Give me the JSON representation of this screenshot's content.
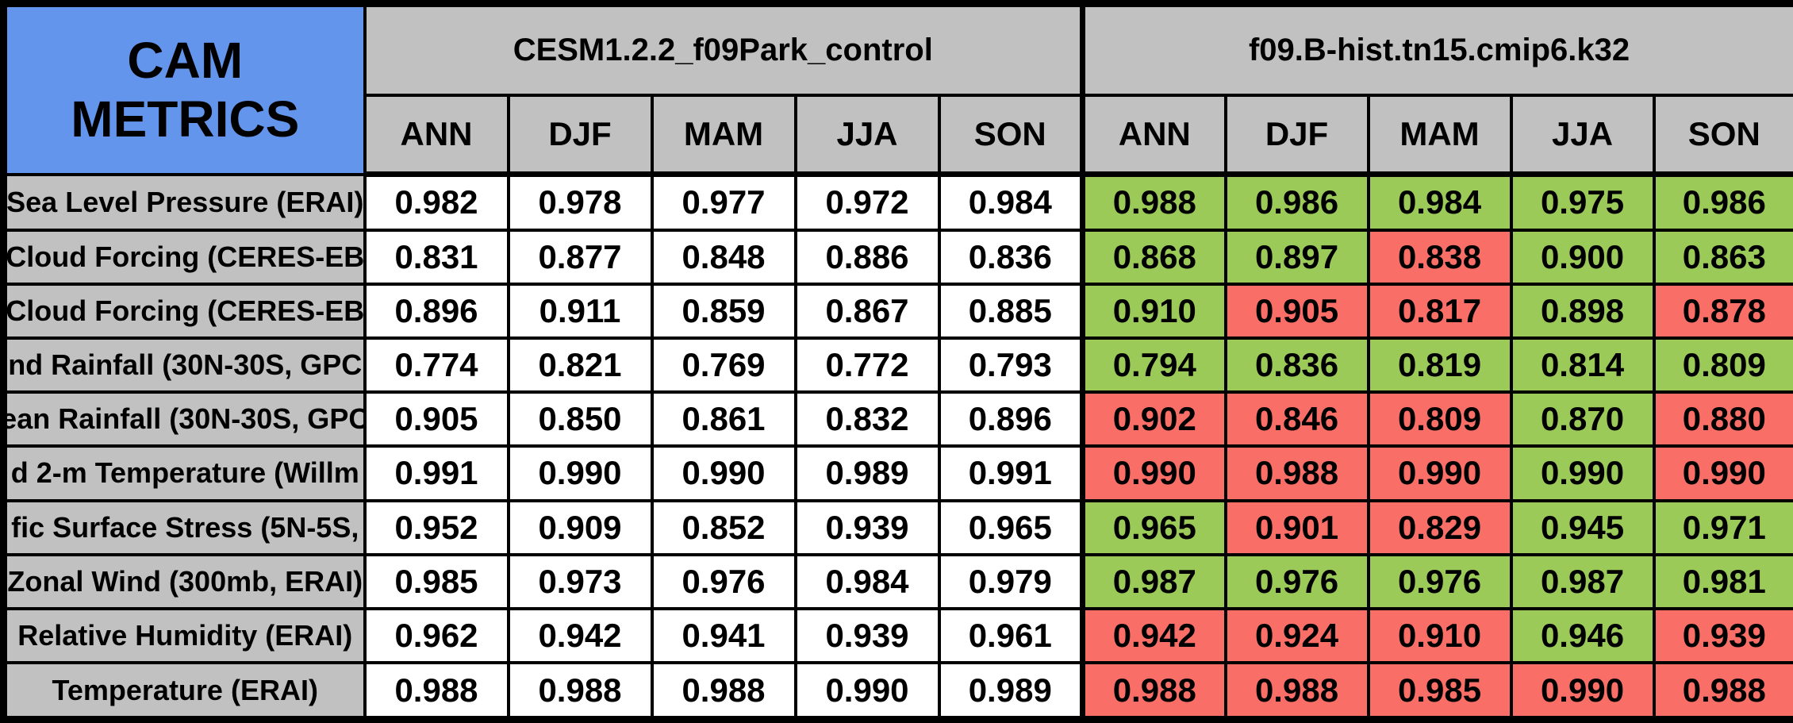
{
  "chart_data": {
    "type": "table",
    "title": "CAM METRICS",
    "column_groups": [
      {
        "title": "CESM1.2.2_f09Park_control"
      },
      {
        "title": "f09.B-hist.tn15.cmip6.k32"
      }
    ],
    "seasons": [
      "ANN",
      "DJF",
      "MAM",
      "JJA",
      "SON"
    ],
    "rows": [
      {
        "label": "Sea Level Pressure (ERAI)",
        "control": [
          "0.982",
          "0.978",
          "0.977",
          "0.972",
          "0.984"
        ],
        "experiment": [
          "0.988",
          "0.986",
          "0.984",
          "0.975",
          "0.986"
        ],
        "experiment_colors": [
          "green",
          "green",
          "green",
          "green",
          "green"
        ]
      },
      {
        "label": "Cloud Forcing (CERES-EB",
        "control": [
          "0.831",
          "0.877",
          "0.848",
          "0.886",
          "0.836"
        ],
        "experiment": [
          "0.868",
          "0.897",
          "0.838",
          "0.900",
          "0.863"
        ],
        "experiment_colors": [
          "green",
          "green",
          "red",
          "green",
          "green"
        ]
      },
      {
        "label": "Cloud Forcing (CERES-EB",
        "control": [
          "0.896",
          "0.911",
          "0.859",
          "0.867",
          "0.885"
        ],
        "experiment": [
          "0.910",
          "0.905",
          "0.817",
          "0.898",
          "0.878"
        ],
        "experiment_colors": [
          "green",
          "red",
          "red",
          "green",
          "red"
        ]
      },
      {
        "label": "nd Rainfall (30N-30S, GPC",
        "control": [
          "0.774",
          "0.821",
          "0.769",
          "0.772",
          "0.793"
        ],
        "experiment": [
          "0.794",
          "0.836",
          "0.819",
          "0.814",
          "0.809"
        ],
        "experiment_colors": [
          "green",
          "green",
          "green",
          "green",
          "green"
        ]
      },
      {
        "label": "ean Rainfall (30N-30S, GPC",
        "control": [
          "0.905",
          "0.850",
          "0.861",
          "0.832",
          "0.896"
        ],
        "experiment": [
          "0.902",
          "0.846",
          "0.809",
          "0.870",
          "0.880"
        ],
        "experiment_colors": [
          "red",
          "red",
          "red",
          "green",
          "red"
        ]
      },
      {
        "label": "d 2-m Temperature (Willm",
        "control": [
          "0.991",
          "0.990",
          "0.990",
          "0.989",
          "0.991"
        ],
        "experiment": [
          "0.990",
          "0.988",
          "0.990",
          "0.990",
          "0.990"
        ],
        "experiment_colors": [
          "red",
          "red",
          "red",
          "green",
          "red"
        ]
      },
      {
        "label": "fic Surface Stress (5N-5S,",
        "control": [
          "0.952",
          "0.909",
          "0.852",
          "0.939",
          "0.965"
        ],
        "experiment": [
          "0.965",
          "0.901",
          "0.829",
          "0.945",
          "0.971"
        ],
        "experiment_colors": [
          "green",
          "red",
          "red",
          "green",
          "green"
        ]
      },
      {
        "label": "Zonal Wind (300mb, ERAI)",
        "control": [
          "0.985",
          "0.973",
          "0.976",
          "0.984",
          "0.979"
        ],
        "experiment": [
          "0.987",
          "0.976",
          "0.976",
          "0.987",
          "0.981"
        ],
        "experiment_colors": [
          "green",
          "green",
          "green",
          "green",
          "green"
        ]
      },
      {
        "label": "Relative Humidity (ERAI)",
        "control": [
          "0.962",
          "0.942",
          "0.941",
          "0.939",
          "0.961"
        ],
        "experiment": [
          "0.942",
          "0.924",
          "0.910",
          "0.946",
          "0.939"
        ],
        "experiment_colors": [
          "red",
          "red",
          "red",
          "green",
          "red"
        ]
      },
      {
        "label": "Temperature (ERAI)",
        "control": [
          "0.988",
          "0.988",
          "0.988",
          "0.990",
          "0.989"
        ],
        "experiment": [
          "0.988",
          "0.988",
          "0.985",
          "0.990",
          "0.988"
        ],
        "experiment_colors": [
          "red",
          "red",
          "red",
          "red",
          "red"
        ]
      }
    ],
    "colors": {
      "better_green": "#9BCA58",
      "worse_red": "#F96F67",
      "title_blue": "#6495ED",
      "header_gray": "#C1C1C1"
    },
    "layout": {
      "legend": "none",
      "grid": "on"
    }
  }
}
